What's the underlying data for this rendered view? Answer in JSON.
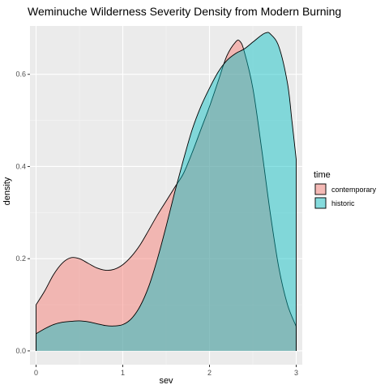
{
  "chart_data": {
    "type": "area",
    "title": "Weminuche Wilderness Severity Density from Modern Burning",
    "xlabel": "sev",
    "ylabel": "density",
    "xlim": [
      -0.07,
      3.07
    ],
    "ylim": [
      -0.03,
      0.705
    ],
    "x_ticks": [
      "0",
      "1",
      "2",
      "3"
    ],
    "y_ticks": [
      "0.0",
      "0.2",
      "0.4",
      "0.6"
    ],
    "grid": true,
    "legend": {
      "title": "time",
      "placement": "right"
    },
    "series": [
      {
        "name": "contemporary",
        "color": "#F8766D",
        "x": [
          0,
          0.1,
          0.2,
          0.3,
          0.4,
          0.5,
          0.6,
          0.7,
          0.8,
          0.9,
          1.0,
          1.1,
          1.2,
          1.3,
          1.4,
          1.5,
          1.6,
          1.7,
          1.8,
          1.9,
          2.0,
          2.1,
          2.2,
          2.3,
          2.35,
          2.4,
          2.5,
          2.6,
          2.7,
          2.8,
          2.9,
          3.0
        ],
        "y": [
          0.1,
          0.13,
          0.165,
          0.19,
          0.202,
          0.2,
          0.19,
          0.18,
          0.175,
          0.177,
          0.187,
          0.205,
          0.23,
          0.262,
          0.295,
          0.325,
          0.355,
          0.385,
          0.43,
          0.48,
          0.53,
          0.585,
          0.64,
          0.67,
          0.672,
          0.65,
          0.57,
          0.44,
          0.3,
          0.18,
          0.1,
          0.053
        ]
      },
      {
        "name": "historic",
        "color": "#00BFC4",
        "x": [
          0,
          0.1,
          0.2,
          0.3,
          0.4,
          0.5,
          0.6,
          0.7,
          0.8,
          0.9,
          1.0,
          1.1,
          1.2,
          1.3,
          1.4,
          1.5,
          1.6,
          1.7,
          1.8,
          1.9,
          2.0,
          2.1,
          2.2,
          2.3,
          2.4,
          2.5,
          2.6,
          2.65,
          2.7,
          2.8,
          2.9,
          2.95,
          3.0
        ],
        "y": [
          0.037,
          0.048,
          0.057,
          0.062,
          0.064,
          0.065,
          0.063,
          0.059,
          0.055,
          0.054,
          0.057,
          0.07,
          0.097,
          0.14,
          0.2,
          0.27,
          0.345,
          0.415,
          0.48,
          0.53,
          0.57,
          0.605,
          0.63,
          0.645,
          0.655,
          0.67,
          0.685,
          0.69,
          0.688,
          0.66,
          0.58,
          0.5,
          0.415
        ]
      }
    ]
  }
}
